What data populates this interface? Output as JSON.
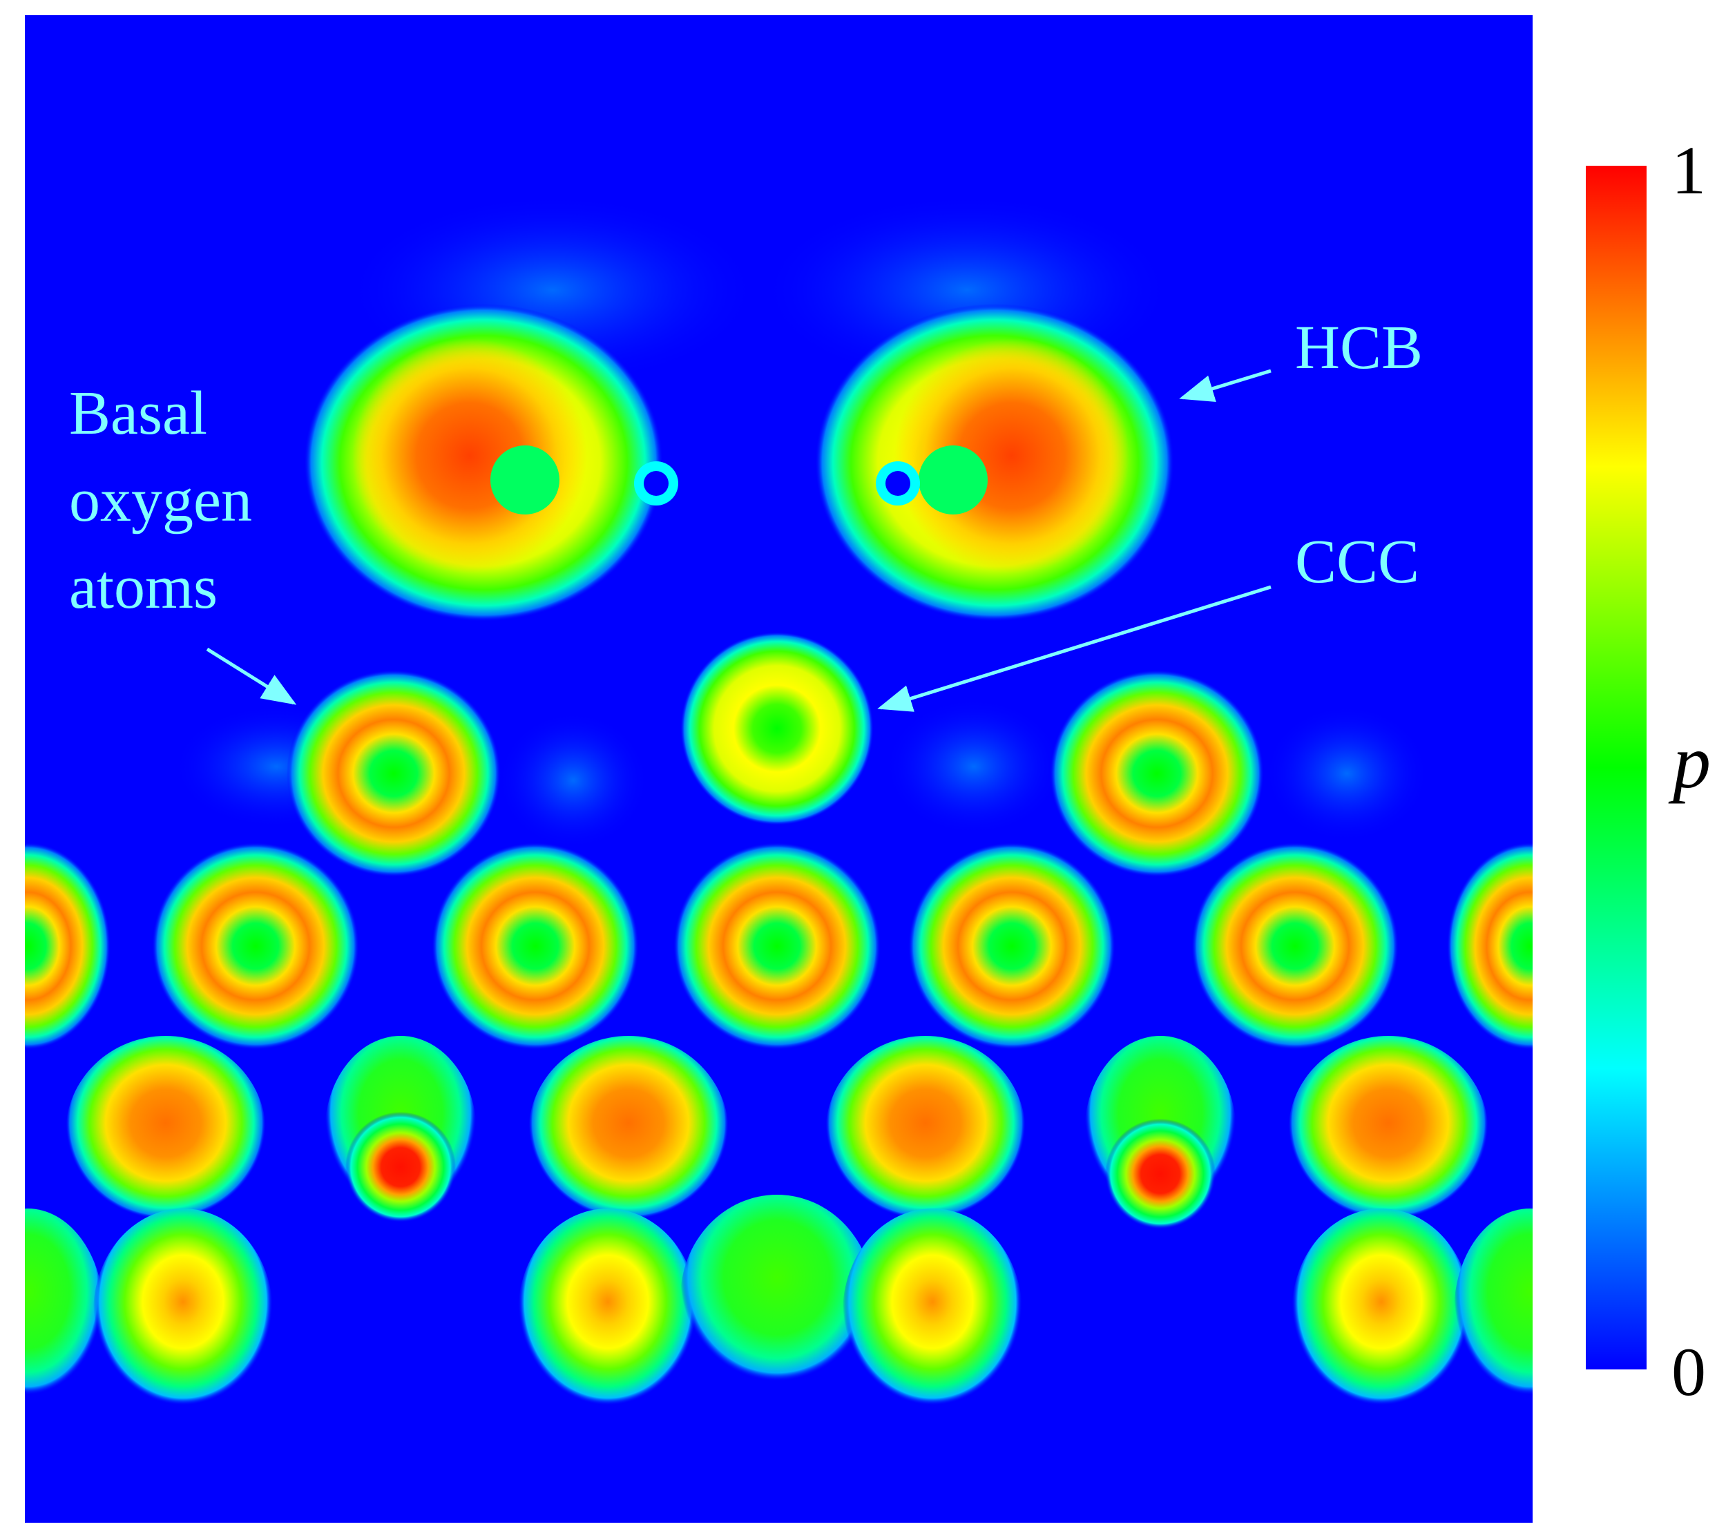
{
  "figure": {
    "annotations": {
      "basal": [
        "Basal",
        "oxygen",
        "atoms"
      ],
      "hcb": "HCB",
      "ccc": "CCC"
    },
    "colorbar": {
      "label": "p",
      "max_label": "1",
      "min_label": "0",
      "range": [
        0,
        1
      ],
      "colormap": [
        "#ff0000",
        "#ff8000",
        "#ffff00",
        "#80ff00",
        "#00ff00",
        "#00ffff",
        "#0080ff",
        "#0000ff"
      ]
    },
    "colors": {
      "background": "#0000ff",
      "annotation": "#80ffff",
      "text": "#000000"
    }
  }
}
